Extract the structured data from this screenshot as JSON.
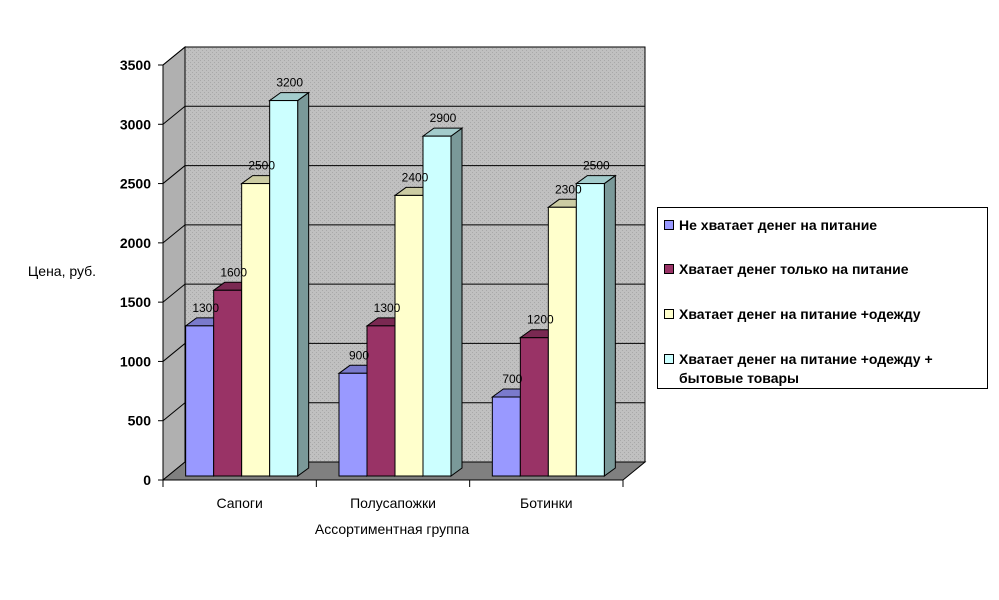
{
  "chart_data": {
    "type": "bar",
    "categories": [
      "Сапоги",
      "Полусапожки",
      "Ботинки"
    ],
    "series": [
      {
        "name": "Не хватает денег на питание",
        "values": [
          1300,
          900,
          700
        ],
        "color": "#9999ff"
      },
      {
        "name": "Хватает денег только на питание",
        "values": [
          1600,
          1300,
          1200
        ],
        "color": "#993366"
      },
      {
        "name": "Хватает денег на питание +одежду",
        "values": [
          2500,
          2400,
          2300
        ],
        "color": "#ffffcc"
      },
      {
        "name": "Хватает денег на питание +одежду + бытовые товары",
        "values": [
          3200,
          2900,
          2500
        ],
        "color": "#ccffff"
      }
    ],
    "y_ticks": [
      "0",
      "500",
      "1000",
      "1500",
      "2000",
      "2500",
      "3000",
      "3500"
    ],
    "xlabel": "Ассортиментная группа",
    "ylabel": "Цена, руб.",
    "ylim": [
      0,
      3500
    ],
    "grid": true,
    "legend_position": "right",
    "style": "3d-clustered-column",
    "wall_color": "#c0c0c0",
    "floor_color": "#808080"
  }
}
